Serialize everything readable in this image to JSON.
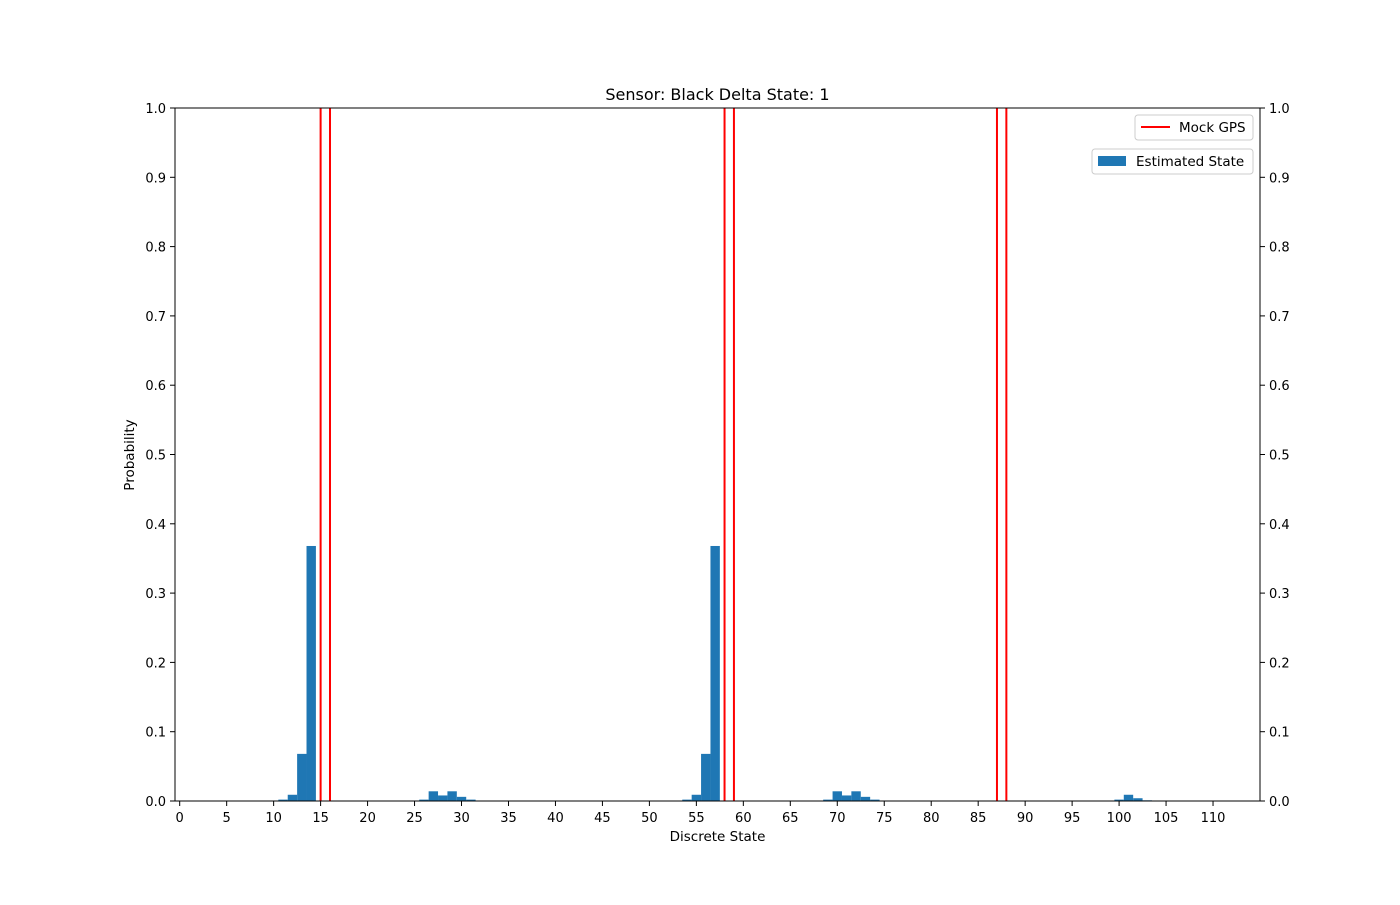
{
  "chart_data": {
    "type": "bar",
    "title": "Sensor: Black Delta State: 1",
    "xlabel": "Discrete State",
    "ylabel": "Probability",
    "xlim": [
      -0.5,
      115
    ],
    "ylim": [
      0,
      1.0
    ],
    "xticks": [
      0,
      5,
      10,
      15,
      20,
      25,
      30,
      35,
      40,
      45,
      50,
      55,
      60,
      65,
      70,
      75,
      80,
      85,
      90,
      95,
      100,
      105,
      110
    ],
    "yticks": [
      0.0,
      0.1,
      0.2,
      0.3,
      0.4,
      0.5,
      0.6,
      0.7,
      0.8,
      0.9,
      1.0
    ],
    "ytick_labels": [
      "0.0",
      "0.1",
      "0.2",
      "0.3",
      "0.4",
      "0.5",
      "0.6",
      "0.7",
      "0.8",
      "0.9",
      "1.0"
    ],
    "right_axis_mirrored": true,
    "grid": false,
    "series": [
      {
        "name": "Estimated State",
        "color": "#1f77b4",
        "x": [
          11,
          12,
          13,
          14,
          26,
          27,
          28,
          29,
          30,
          31,
          54,
          55,
          56,
          57,
          69,
          70,
          71,
          72,
          73,
          74,
          100,
          101,
          102,
          103
        ],
        "values": [
          0.002,
          0.009,
          0.068,
          0.368,
          0.002,
          0.014,
          0.008,
          0.014,
          0.006,
          0.002,
          0.002,
          0.009,
          0.068,
          0.368,
          0.002,
          0.014,
          0.008,
          0.014,
          0.006,
          0.002,
          0.002,
          0.009,
          0.004,
          0.001
        ]
      }
    ],
    "vlines": {
      "name": "Mock GPS",
      "color": "#ff0000",
      "x": [
        15,
        16,
        58,
        59,
        87,
        88
      ]
    },
    "legend": {
      "lines": {
        "label": "Mock GPS",
        "placement": "top-right"
      },
      "bars": {
        "label": "Estimated State",
        "placement": "top-right, below"
      }
    }
  }
}
